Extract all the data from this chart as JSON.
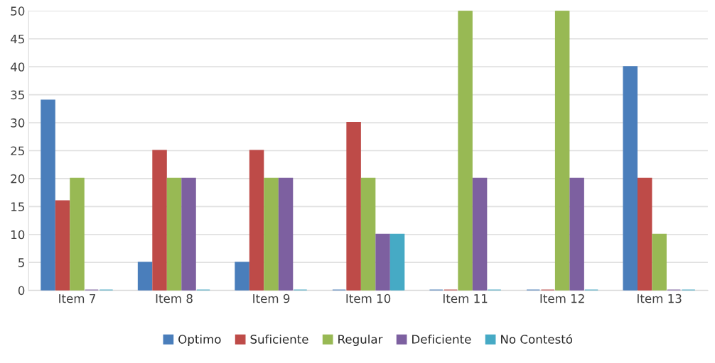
{
  "chart_data": {
    "type": "bar",
    "categories": [
      "Item 7",
      "Item 8",
      "Item 9",
      "Item 10",
      "Item 11",
      "Item 12",
      "Item 13"
    ],
    "series": [
      {
        "name": "Optimo",
        "color": "#4a7ebb",
        "values": [
          34,
          5,
          5,
          0,
          0,
          0,
          40
        ]
      },
      {
        "name": "Suficiente",
        "color": "#be4b48",
        "values": [
          16,
          25,
          25,
          30,
          0,
          0,
          20
        ]
      },
      {
        "name": "Regular",
        "color": "#98b954",
        "values": [
          20,
          20,
          20,
          20,
          50,
          50,
          10
        ]
      },
      {
        "name": "Deficiente",
        "color": "#7d60a0",
        "values": [
          0,
          20,
          20,
          10,
          20,
          20,
          0
        ]
      },
      {
        "name": "No Contestó",
        "color": "#46aac5",
        "values": [
          0,
          0,
          0,
          10,
          0,
          0,
          0
        ]
      }
    ],
    "ylim": [
      0,
      50
    ],
    "yticks": [
      0,
      5,
      10,
      15,
      20,
      25,
      30,
      35,
      40,
      45,
      50
    ],
    "grid": "y",
    "legend": "bottom"
  }
}
